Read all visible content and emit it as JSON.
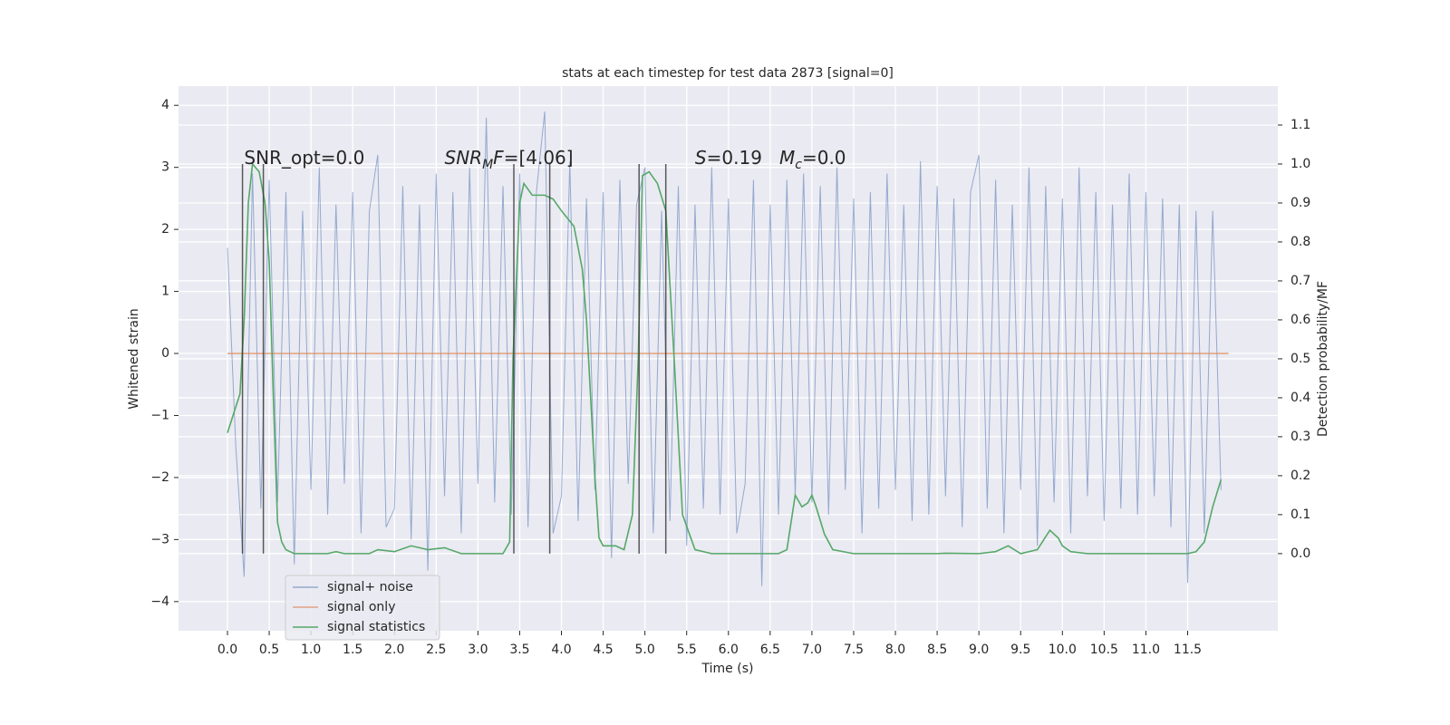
{
  "chart_data": {
    "type": "line",
    "title": "stats at each timestep for test data 2873 [signal=0]",
    "xlabel": "Time (s)",
    "ylabel": "Whitened strain",
    "y2label": "Detection probability/MF",
    "xlim": [
      -0.586,
      12.58
    ],
    "ylim": [
      -4.47,
      4.31
    ],
    "y2lim": [
      -0.198,
      1.2
    ],
    "xticks": [
      {
        "value": 0,
        "label": "0.0"
      },
      0.5,
      {
        "value": 1,
        "label": "1.0"
      },
      1.5,
      {
        "value": 2,
        "label": "2.0"
      },
      2.5,
      {
        "value": 3,
        "label": "3.0"
      },
      3.5,
      {
        "value": 4,
        "label": "4.0"
      },
      4.5,
      {
        "value": 5,
        "label": "5.0"
      },
      5.5,
      {
        "value": 6,
        "label": "6.0"
      },
      6.5,
      {
        "value": 7,
        "label": "7.0"
      },
      7.5,
      {
        "value": 8,
        "label": "8.0"
      },
      8.5,
      {
        "value": 9,
        "label": "9.0"
      },
      9.5,
      {
        "value": 10,
        "label": "10.0"
      },
      10.5,
      {
        "value": 11,
        "label": "11.0"
      },
      11.5
    ],
    "yticks": [
      {
        "value": -4,
        "label": "−4"
      },
      {
        "value": -3,
        "label": "−3"
      },
      {
        "value": -2,
        "label": "−2"
      },
      {
        "value": -1,
        "label": "−1"
      },
      0,
      1,
      2,
      3,
      4
    ],
    "y2ticks": [
      {
        "value": 0,
        "label": "0.0"
      },
      0.1,
      0.2,
      0.3,
      0.4,
      0.5,
      0.6,
      0.7,
      0.8,
      0.9,
      {
        "value": 1,
        "label": "1.0"
      },
      1.1
    ],
    "grid": true,
    "legend": "lower left",
    "series": [
      {
        "name": "signal+ noise",
        "color": "#4c72b0",
        "x": [
          0.0,
          0.1,
          0.2,
          0.3,
          0.4,
          0.5,
          0.6,
          0.7,
          0.8,
          0.9,
          1.0,
          1.1,
          1.2,
          1.3,
          1.4,
          1.5,
          1.6,
          1.7,
          1.8,
          1.9,
          2.0,
          2.1,
          2.2,
          2.3,
          2.4,
          2.5,
          2.6,
          2.7,
          2.8,
          2.9,
          3.0,
          3.1,
          3.2,
          3.3,
          3.4,
          3.5,
          3.6,
          3.7,
          3.8,
          3.9,
          4.0,
          4.1,
          4.2,
          4.3,
          4.4,
          4.5,
          4.6,
          4.7,
          4.8,
          4.9,
          5.0,
          5.1,
          5.2,
          5.3,
          5.4,
          5.5,
          5.6,
          5.7,
          5.8,
          5.9,
          6.0,
          6.1,
          6.2,
          6.3,
          6.4,
          6.5,
          6.6,
          6.7,
          6.8,
          6.9,
          7.0,
          7.1,
          7.2,
          7.3,
          7.4,
          7.5,
          7.6,
          7.7,
          7.8,
          7.9,
          8.0,
          8.1,
          8.2,
          8.3,
          8.4,
          8.5,
          8.6,
          8.7,
          8.8,
          8.9,
          9.0,
          9.1,
          9.2,
          9.3,
          9.4,
          9.5,
          9.6,
          9.7,
          9.8,
          9.9,
          10.0,
          10.1,
          10.2,
          10.3,
          10.4,
          10.5,
          10.6,
          10.7,
          10.8,
          10.9,
          11.0,
          11.1,
          11.2,
          11.3,
          11.4,
          11.5,
          11.6,
          11.7,
          11.8,
          11.9
        ],
        "values": [
          1.7,
          -1.5,
          -3.6,
          2.9,
          -2.5,
          2.8,
          -2.4,
          2.6,
          -3.4,
          2.3,
          -2.2,
          3.0,
          -2.6,
          2.4,
          -2.1,
          2.6,
          -2.9,
          2.3,
          3.2,
          -2.8,
          -2.5,
          2.7,
          -3.0,
          2.4,
          -3.5,
          2.9,
          -2.3,
          2.6,
          -2.9,
          3.0,
          -2.1,
          3.8,
          -2.4,
          2.7,
          -2.6,
          2.9,
          -2.8,
          2.6,
          3.9,
          -2.9,
          -2.3,
          3.1,
          -2.7,
          2.5,
          -2.2,
          2.6,
          -3.3,
          2.8,
          -2.1,
          2.4,
          3.0,
          -2.9,
          2.3,
          -2.7,
          2.7,
          -3.1,
          2.4,
          -2.5,
          3.0,
          -2.6,
          2.5,
          -2.9,
          -2.1,
          2.8,
          -3.75,
          2.4,
          -2.6,
          2.8,
          -2.3,
          2.9,
          -2.4,
          2.7,
          -2.6,
          3.0,
          -2.2,
          2.5,
          -2.9,
          2.6,
          -2.5,
          2.9,
          -2.2,
          2.4,
          -2.7,
          3.1,
          -2.6,
          2.7,
          -2.3,
          2.5,
          -2.8,
          2.6,
          3.2,
          -2.5,
          2.8,
          -2.9,
          2.4,
          -2.2,
          3.0,
          -3.1,
          2.7,
          -2.4,
          2.5,
          -2.9,
          3.0,
          -2.3,
          2.6,
          -2.7,
          2.4,
          -2.5,
          2.9,
          -2.6,
          2.6,
          -2.3,
          2.5,
          -2.8,
          2.4,
          -3.7,
          2.3,
          -2.9,
          2.3,
          -2.2
        ]
      },
      {
        "name": "signal only",
        "color": "#dd8452",
        "x": [
          0.0,
          11.99
        ],
        "values": [
          0,
          0
        ]
      },
      {
        "name": "signal statistics",
        "color": "#55a868",
        "axis": "y2",
        "x": [
          0.0,
          0.15,
          0.2,
          0.25,
          0.3,
          0.38,
          0.45,
          0.5,
          0.55,
          0.6,
          0.65,
          0.7,
          0.8,
          1.0,
          1.2,
          1.3,
          1.4,
          1.7,
          1.8,
          2.0,
          2.2,
          2.4,
          2.6,
          2.8,
          3.0,
          3.3,
          3.38,
          3.42,
          3.5,
          3.55,
          3.65,
          3.8,
          3.9,
          4.0,
          4.15,
          4.25,
          4.3,
          4.4,
          4.45,
          4.5,
          4.65,
          4.75,
          4.85,
          4.92,
          4.97,
          5.05,
          5.15,
          5.25,
          5.35,
          5.45,
          5.55,
          5.6,
          5.8,
          6.3,
          6.6,
          6.7,
          6.8,
          6.88,
          6.95,
          7.0,
          7.05,
          7.15,
          7.25,
          7.5,
          8.5,
          8.6,
          9.0,
          9.2,
          9.35,
          9.5,
          9.7,
          9.85,
          9.95,
          10.0,
          10.1,
          10.3,
          11.5,
          11.6,
          11.7,
          11.8,
          11.9
        ],
        "values": [
          0.31,
          0.41,
          0.6,
          0.9,
          1.0,
          0.98,
          0.9,
          0.75,
          0.4,
          0.08,
          0.03,
          0.01,
          0.0,
          0.0,
          0.0,
          0.005,
          0.0,
          0.0,
          0.01,
          0.005,
          0.02,
          0.01,
          0.015,
          0.0,
          0.0,
          0.0,
          0.03,
          0.5,
          0.9,
          0.95,
          0.92,
          0.92,
          0.91,
          0.88,
          0.84,
          0.73,
          0.6,
          0.2,
          0.04,
          0.02,
          0.02,
          0.01,
          0.1,
          0.5,
          0.97,
          0.98,
          0.95,
          0.88,
          0.5,
          0.1,
          0.04,
          0.01,
          0.0,
          0.0,
          0.0,
          0.01,
          0.15,
          0.12,
          0.13,
          0.15,
          0.12,
          0.05,
          0.01,
          0.0,
          0.0,
          0.001,
          0.0,
          0.005,
          0.02,
          0.0,
          0.01,
          0.06,
          0.04,
          0.02,
          0.005,
          0.0,
          0.0,
          0.005,
          0.03,
          0.12,
          0.19
        ]
      }
    ],
    "vlines": {
      "color": "#333333",
      "x": [
        0.18,
        0.43,
        3.43,
        3.86,
        4.93,
        5.25
      ],
      "y2range": [
        0,
        1
      ]
    },
    "annotations": [
      {
        "x": 0.2,
        "y": 3.05,
        "parts": [
          {
            "text": "SNR_opt=0.0",
            "style": "normal"
          }
        ]
      },
      {
        "x": 2.6,
        "y": 3.05,
        "parts": [
          {
            "text": "SNR",
            "style": "italic"
          },
          {
            "text": "M",
            "style": "sub"
          },
          {
            "text": "F",
            "style": "italic"
          },
          {
            "text": "=[4.06]",
            "style": "normal"
          }
        ]
      },
      {
        "x": 5.6,
        "y": 3.05,
        "parts": [
          {
            "text": "S",
            "style": "italic"
          },
          {
            "text": "=0.19   ",
            "style": "normal"
          },
          {
            "text": "M",
            "style": "italic"
          },
          {
            "text": "c",
            "style": "sub"
          },
          {
            "text": "=0.0",
            "style": "normal"
          }
        ]
      }
    ]
  }
}
